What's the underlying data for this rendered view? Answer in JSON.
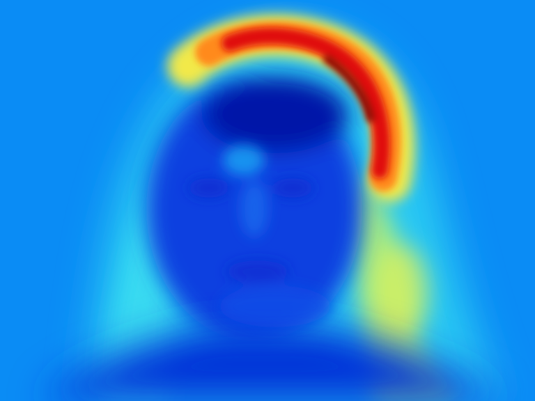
{
  "image": {
    "kind": "heatmap-overlay",
    "colormap": "jet",
    "colors": {
      "background": "#0a8cf5",
      "low": "#0033d6",
      "lowest": "#001a9e",
      "mid_cyan": "#2fe8f0",
      "mid_green": "#9ef28a",
      "yellow": "#f2e94a",
      "orange": "#ff8a1a",
      "red": "#e01010",
      "dark_red": "#8a0000"
    }
  }
}
